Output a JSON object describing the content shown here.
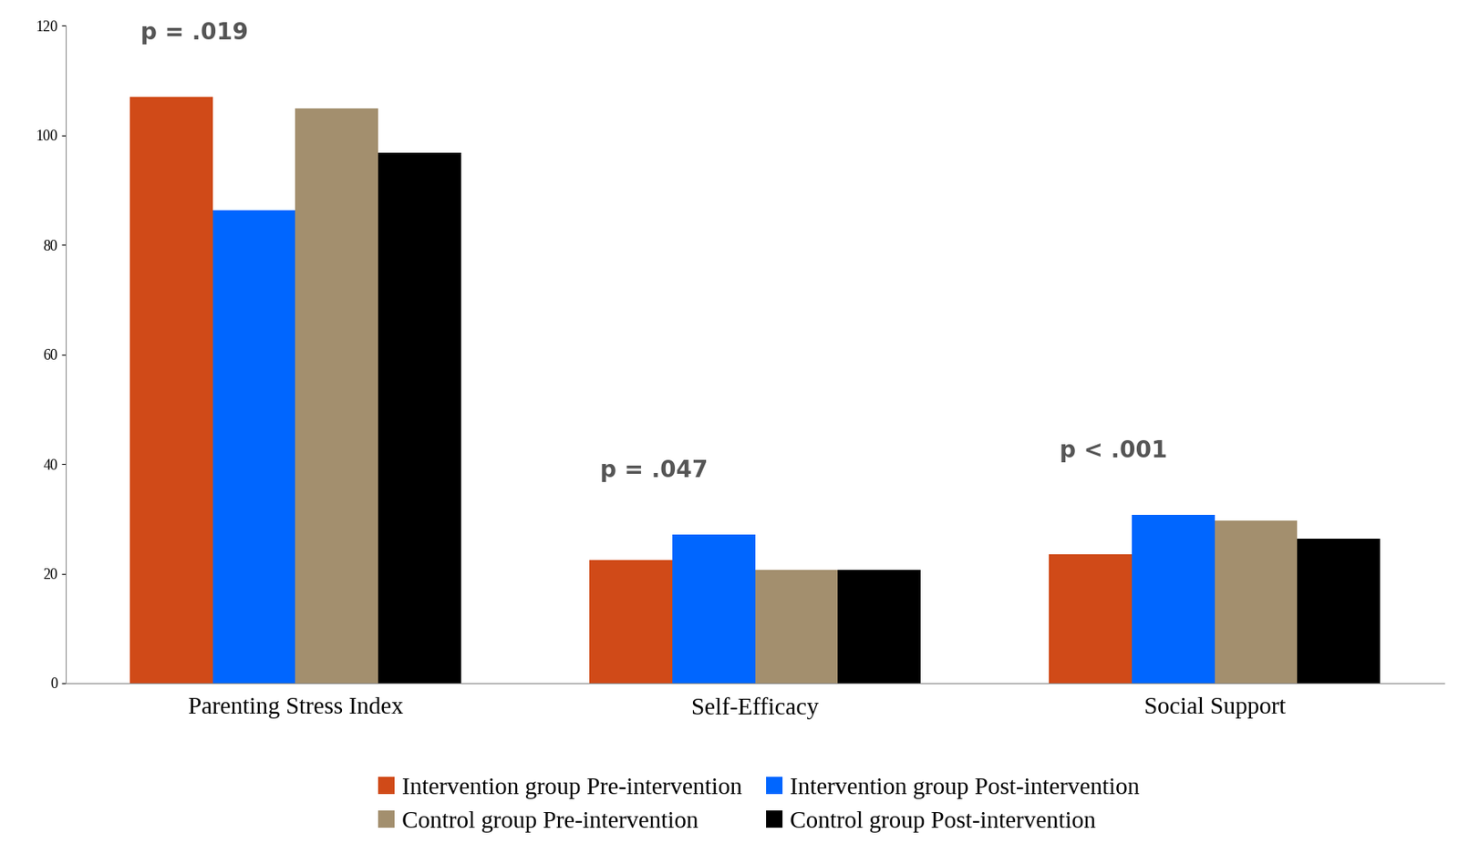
{
  "chart_data": {
    "type": "bar",
    "categories": [
      "Parenting Stress Index",
      "Self-Efficacy",
      "Social Support"
    ],
    "series": [
      {
        "name": "Intervention group Pre-intervention",
        "color": "#D04A18",
        "values": [
          107.0,
          22.5,
          23.5
        ]
      },
      {
        "name": "Intervention group Post-intervention",
        "color": "#0066FF",
        "values": [
          86.3,
          27.1,
          30.7
        ]
      },
      {
        "name": "Control group Pre-intervention",
        "color": "#A38F6E",
        "values": [
          104.9,
          20.7,
          29.6
        ]
      },
      {
        "name": "Control group Post-intervention",
        "color": "#000000",
        "values": [
          96.8,
          20.7,
          26.3
        ]
      }
    ],
    "annotations": [
      {
        "text": "p = .019",
        "category": "Parenting Stress Index"
      },
      {
        "text": "p = .047",
        "category": "Self-Efficacy"
      },
      {
        "text": "p < .001",
        "category": "Social Support"
      }
    ],
    "ylim": [
      0,
      120
    ],
    "yticks": [
      0,
      20,
      40,
      60,
      80,
      100,
      120
    ],
    "grid": false,
    "legend": "bottom"
  }
}
